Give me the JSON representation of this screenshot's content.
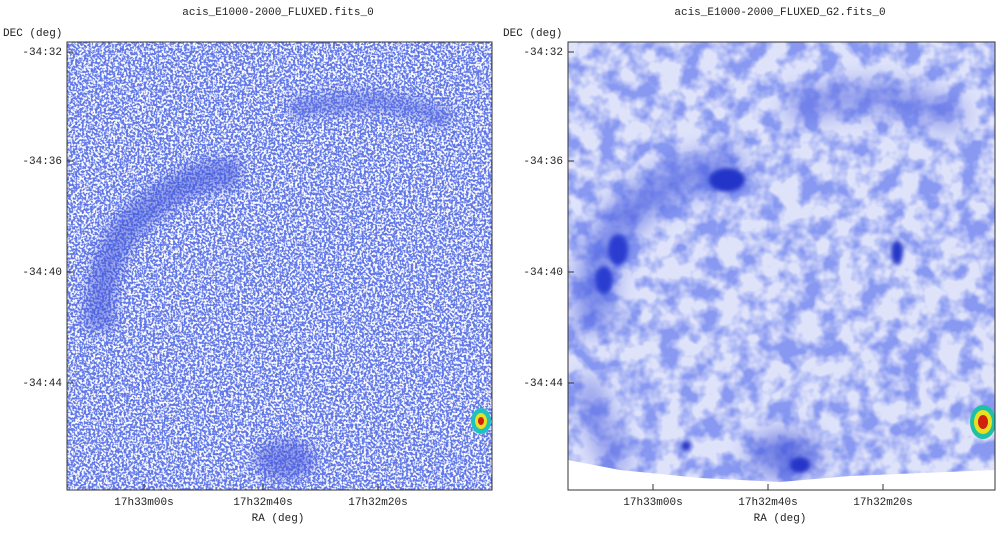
{
  "panels": [
    {
      "title": "acis_E1000-2000_FLUXED.fits_0",
      "y_label": "DEC (deg)",
      "x_label": "RA (deg)",
      "y_ticks": [
        "-34:32",
        "-34:36",
        "-34:40",
        "-34:44"
      ],
      "x_ticks": [
        "17h33m00s",
        "17h32m40s",
        "17h32m20s"
      ]
    },
    {
      "title": "acis_E1000-2000_FLUXED_G2.fits_0",
      "y_label": "DEC (deg)",
      "x_label": "RA (deg)",
      "y_ticks": [
        "-34:32",
        "-34:36",
        "-34:40",
        "-34:44"
      ],
      "x_ticks": [
        "17h33m00s",
        "17h32m40s",
        "17h32m20s"
      ]
    }
  ]
}
